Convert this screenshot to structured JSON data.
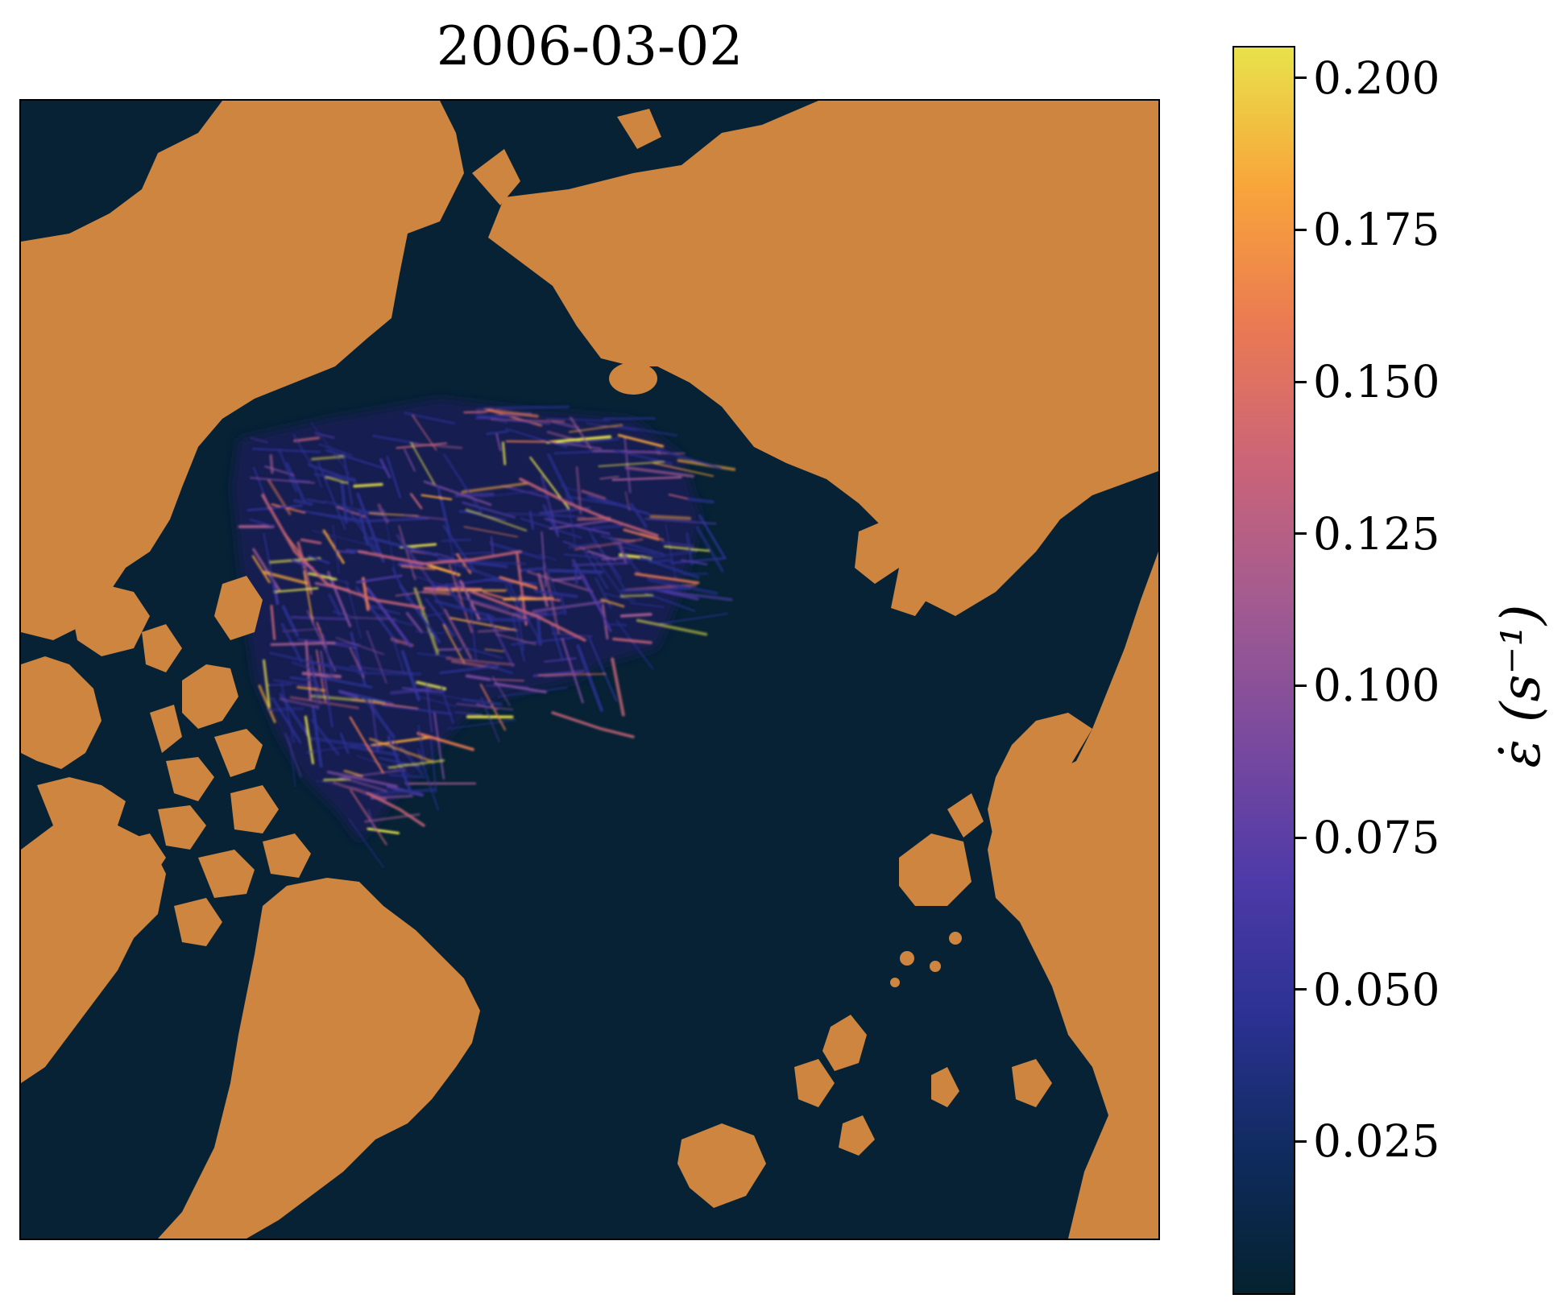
{
  "map": {
    "title": "2006-03-02",
    "projection": "north-polar-stereographic",
    "ocean_color": "#062234",
    "land_color": "#cd853f",
    "colormap": "thermal",
    "colormap_stops": [
      "#04222e",
      "#0f2b5e",
      "#2b3193",
      "#4e3aa8",
      "#7a4a9e",
      "#a35b90",
      "#cb6478",
      "#ea7a52",
      "#f8a53a",
      "#e8e24a"
    ]
  },
  "colorbar": {
    "label": "ε̇ (s⁻¹)",
    "ticks": [
      "0.025",
      "0.050",
      "0.075",
      "0.100",
      "0.125",
      "0.150",
      "0.175",
      "0.200"
    ],
    "min": 0.0,
    "max": 0.205
  }
}
